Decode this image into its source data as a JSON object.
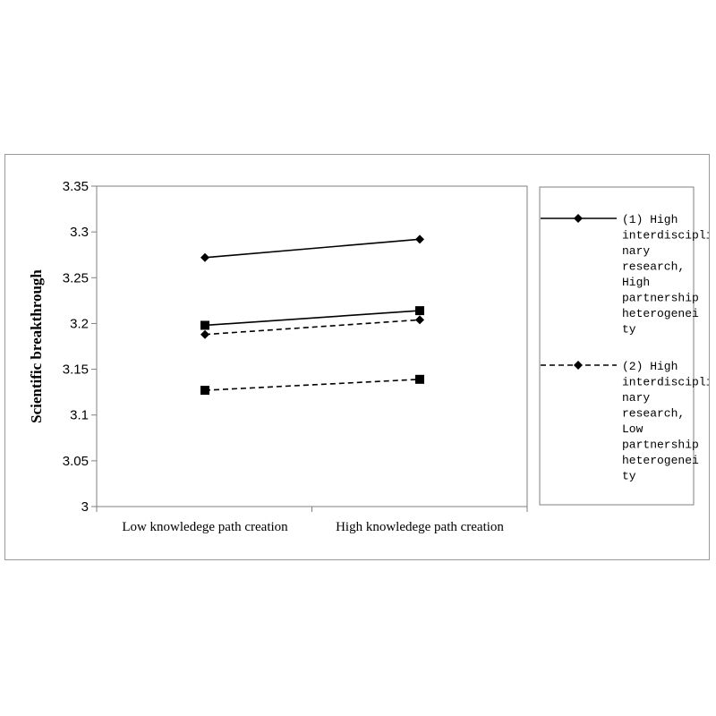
{
  "chart_data": {
    "type": "line",
    "title": "",
    "xlabel": "",
    "ylabel": "Scientific breakthrough",
    "categories": [
      "Low knowledege path creation",
      "High knowledege path creation"
    ],
    "ylim": [
      3,
      3.35
    ],
    "yticks": [
      "3.35",
      "3.3",
      "3.25",
      "3.2",
      "3.15",
      "3.1",
      "3.05",
      "3"
    ],
    "ytick_values": [
      3.35,
      3.3,
      3.25,
      3.2,
      3.15,
      3.1,
      3.05,
      3
    ],
    "grid": false,
    "legend_position": "right",
    "series": [
      {
        "name": "(1) High interdisciplinary research, High partnership heterogeneity",
        "legend_lines": [
          "(1) High",
          "interdiscipli",
          "nary",
          "research,",
          "High",
          "partnership",
          "heterogenei",
          "ty"
        ],
        "line_style": "solid",
        "marker": "diamond",
        "values": [
          3.272,
          3.292
        ]
      },
      {
        "name": "(2) High interdisciplinary research, Low partnership heterogeneity",
        "legend_lines": [
          "(2) High",
          "interdiscipli",
          "nary",
          "research,",
          "Low",
          "partnership",
          "heterogenei",
          "ty"
        ],
        "line_style": "dashed",
        "marker": "diamond",
        "values": [
          3.188,
          3.204
        ]
      },
      {
        "line_style": "solid",
        "marker": "square",
        "values": [
          3.198,
          3.214
        ]
      },
      {
        "line_style": "dashed",
        "marker": "square",
        "values": [
          3.127,
          3.139
        ]
      }
    ],
    "colors": {
      "line": "#000000",
      "axis": "#7f7f7f",
      "frame": "#9a9a9a"
    }
  }
}
